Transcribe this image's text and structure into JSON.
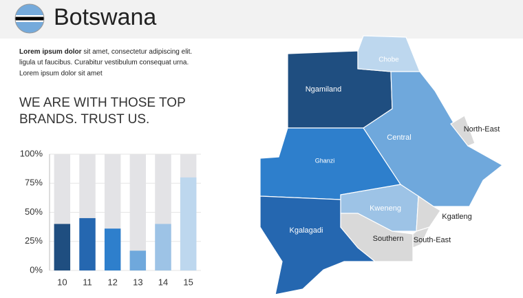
{
  "header": {
    "title": "Botswana"
  },
  "text": {
    "bold": "Lorem ipsum dolor",
    "lines": [
      "sit amet, consectetur adipiscing elit.",
      "ligula ut faucibus. Curabitur vestibulum consequat urna.",
      "Lorem ipsum dolor sit amet"
    ]
  },
  "heading": [
    "WE ARE WITH THOSE TOP",
    "BRANDS. TRUST US."
  ],
  "chart_data": {
    "type": "bar",
    "categories": [
      "10",
      "11",
      "12",
      "13",
      "14",
      "15"
    ],
    "values": [
      40,
      45,
      36,
      17,
      40,
      80
    ],
    "colors": [
      "#1f4e80",
      "#2567b0",
      "#2e7fcc",
      "#6fa8dc",
      "#9dc3e6",
      "#bdd7ee"
    ],
    "ylim": [
      0,
      100
    ],
    "yticks": [
      {
        "value": 0,
        "label": "0%"
      },
      {
        "value": 25,
        "label": "25%"
      },
      {
        "value": 50,
        "label": "50%"
      },
      {
        "value": 75,
        "label": "75%"
      },
      {
        "value": 100,
        "label": "100%"
      }
    ]
  },
  "map": {
    "regions": [
      {
        "name": "Ngamiland",
        "color": "#1f4e80"
      },
      {
        "name": "Chobe",
        "color": "#bdd7ee"
      },
      {
        "name": "Central",
        "color": "#6fa8dc"
      },
      {
        "name": "North-East",
        "color": "#d9d9d9"
      },
      {
        "name": "Ghanzi",
        "color": "#2e7fcc"
      },
      {
        "name": "Kgalagadi",
        "color": "#2567b0"
      },
      {
        "name": "Kweneng",
        "color": "#9dc3e6"
      },
      {
        "name": "Southern",
        "color": "#d9d9d9"
      },
      {
        "name": "Kgatleng",
        "color": "#d9d9d9"
      },
      {
        "name": "South-East",
        "color": "#d9d9d9"
      }
    ]
  }
}
